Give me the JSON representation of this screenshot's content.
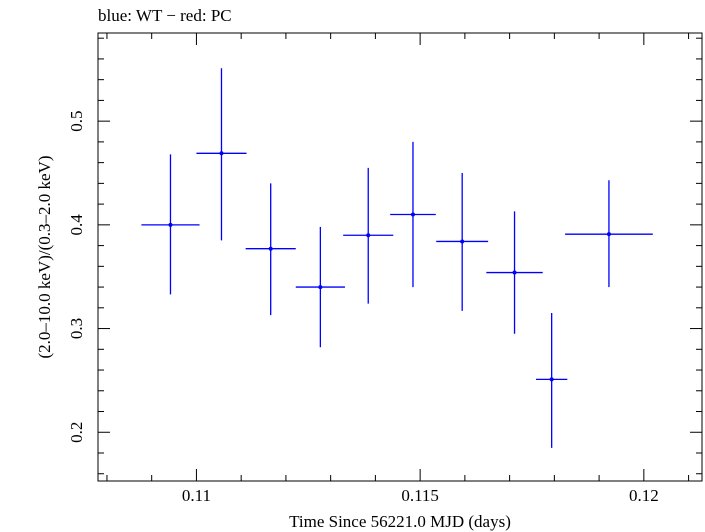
{
  "chart_data": {
    "type": "scatter",
    "title": "blue: WT − red: PC",
    "xlabel": "Time Since 56221.0 MJD (days)",
    "ylabel": "(2.0–10.0 keV)/(0.3–2.0 keV)",
    "xlim": [
      0.1078,
      0.1213
    ],
    "ylim": [
      0.153,
      0.585
    ],
    "xticks": [
      0.11,
      0.115,
      0.12
    ],
    "xtick_labels": [
      "0.11",
      "0.115",
      "0.12"
    ],
    "yticks": [
      0.2,
      0.3,
      0.4,
      0.5
    ],
    "ytick_labels": [
      "0.2",
      "0.3",
      "0.4",
      "0.5"
    ],
    "series": [
      {
        "name": "WT",
        "color": "#0000ff",
        "points": [
          {
            "x": 0.10942,
            "y": 0.4,
            "xerr": 0.00065,
            "yerr_low": 0.067,
            "yerr_high": 0.068
          },
          {
            "x": 0.11056,
            "y": 0.469,
            "xerr": 0.00056,
            "yerr_low": 0.084,
            "yerr_high": 0.082
          },
          {
            "x": 0.11166,
            "y": 0.377,
            "xerr": 0.00056,
            "yerr_low": 0.064,
            "yerr_high": 0.063
          },
          {
            "x": 0.11277,
            "y": 0.34,
            "xerr": 0.00055,
            "yerr_low": 0.058,
            "yerr_high": 0.058
          },
          {
            "x": 0.11384,
            "y": 0.39,
            "xerr": 0.00056,
            "yerr_low": 0.066,
            "yerr_high": 0.065
          },
          {
            "x": 0.11484,
            "y": 0.41,
            "xerr": 0.00051,
            "yerr_low": 0.07,
            "yerr_high": 0.07
          },
          {
            "x": 0.11594,
            "y": 0.384,
            "xerr": 0.00058,
            "yerr_low": 0.067,
            "yerr_high": 0.066
          },
          {
            "x": 0.11711,
            "y": 0.354,
            "xerr": 0.00063,
            "yerr_low": 0.059,
            "yerr_high": 0.059
          },
          {
            "x": 0.11794,
            "y": 0.251,
            "xerr": 0.00035,
            "yerr_low": 0.066,
            "yerr_high": 0.064
          },
          {
            "x": 0.11922,
            "y": 0.391,
            "xerr": 0.00098,
            "yerr_low": 0.051,
            "yerr_high": 0.052
          }
        ]
      }
    ]
  }
}
